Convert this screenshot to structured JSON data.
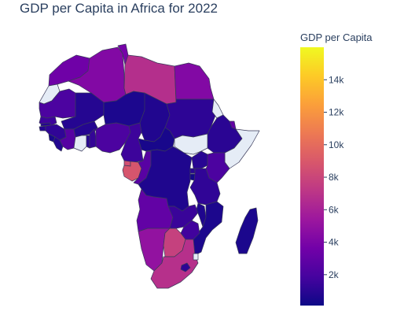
{
  "chart_data": {
    "type": "choropleth",
    "title": "GDP per Capita in Africa for 2022",
    "colorbar": {
      "title": "GDP per Capita",
      "tick_labels": [
        "2k",
        "4k",
        "6k",
        "8k",
        "10k",
        "12k",
        "14k"
      ],
      "tick_values": [
        2000,
        4000,
        6000,
        8000,
        10000,
        12000,
        14000
      ],
      "range": [
        100,
        16000
      ],
      "colorscale": [
        "#0d0887",
        "#46039f",
        "#7201a8",
        "#9c179e",
        "#bd3786",
        "#d8576b",
        "#ed7953",
        "#fb9f3a",
        "#fdca26",
        "#f0f921"
      ]
    },
    "missing_color": "#e5ecf6",
    "countries": [
      {
        "name": "Morocco",
        "value": 3500
      },
      {
        "name": "Western Sahara",
        "value": null
      },
      {
        "name": "Algeria",
        "value": 4300
      },
      {
        "name": "Tunisia",
        "value": 3800
      },
      {
        "name": "Libya",
        "value": 6700
      },
      {
        "name": "Egypt",
        "value": 4300
      },
      {
        "name": "Mauritania",
        "value": 2100
      },
      {
        "name": "Mali",
        "value": 850
      },
      {
        "name": "Niger",
        "value": 580
      },
      {
        "name": "Chad",
        "value": 720
      },
      {
        "name": "Sudan",
        "value": 1100
      },
      {
        "name": "Eritrea",
        "value": null
      },
      {
        "name": "Ethiopia",
        "value": 1000
      },
      {
        "name": "Djibouti",
        "value": 3100
      },
      {
        "name": "Somalia",
        "value": null
      },
      {
        "name": "Senegal",
        "value": 1600
      },
      {
        "name": "Gambia",
        "value": 800
      },
      {
        "name": "Guinea-Bissau",
        "value": 800
      },
      {
        "name": "Guinea",
        "value": 1200
      },
      {
        "name": "Sierra Leone",
        "value": 480
      },
      {
        "name": "Liberia",
        "value": 750
      },
      {
        "name": "Cote d'Ivoire",
        "value": 2500
      },
      {
        "name": "Burkina Faso",
        "value": 830
      },
      {
        "name": "Ghana",
        "value": null
      },
      {
        "name": "Togo",
        "value": 950
      },
      {
        "name": "Benin",
        "value": 1300
      },
      {
        "name": "Nigeria",
        "value": 2100
      },
      {
        "name": "Cameroon",
        "value": 1600
      },
      {
        "name": "Central African Republic",
        "value": 430
      },
      {
        "name": "South Sudan",
        "value": null
      },
      {
        "name": "Equatorial Guinea",
        "value": 8500
      },
      {
        "name": "Gabon",
        "value": 8800
      },
      {
        "name": "Republic of the Congo",
        "value": 2600
      },
      {
        "name": "Democratic Republic of the Congo",
        "value": 650
      },
      {
        "name": "Uganda",
        "value": 950
      },
      {
        "name": "Kenya",
        "value": 2100
      },
      {
        "name": "Rwanda",
        "value": 960
      },
      {
        "name": "Burundi",
        "value": 260
      },
      {
        "name": "Tanzania",
        "value": 1200
      },
      {
        "name": "Angola",
        "value": 3000
      },
      {
        "name": "Zambia",
        "value": 1450
      },
      {
        "name": "Malawi",
        "value": 650
      },
      {
        "name": "Mozambique",
        "value": 560
      },
      {
        "name": "Zimbabwe",
        "value": 1700
      },
      {
        "name": "Namibia",
        "value": 5000
      },
      {
        "name": "Botswana",
        "value": 7700
      },
      {
        "name": "South Africa",
        "value": 6800
      },
      {
        "name": "Lesotho",
        "value": 1100
      },
      {
        "name": "Eswatini",
        "value": null
      },
      {
        "name": "Madagascar",
        "value": 520
      }
    ]
  }
}
